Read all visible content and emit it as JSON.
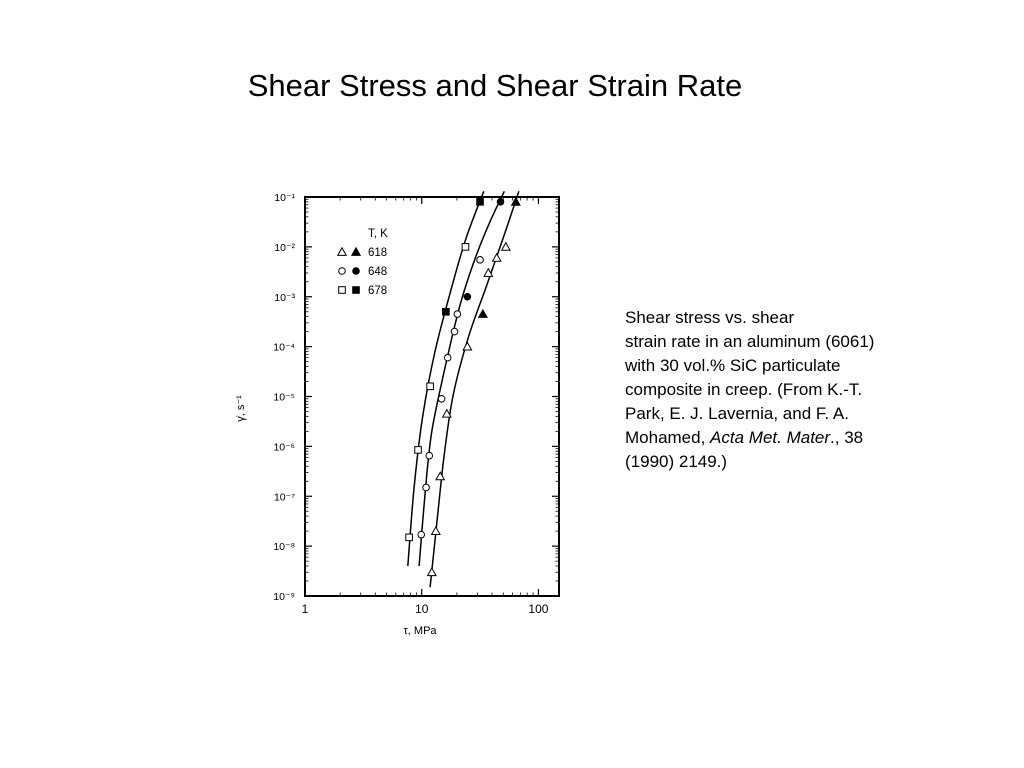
{
  "slide": {
    "title": "Shear Stress and Shear Strain Rate"
  },
  "caption": {
    "lines": [
      "Shear stress vs. shear",
      "strain rate in an aluminum (6061)",
      "with 30 vol.% SiC particulate",
      "composite in creep. (From K.-T.",
      "Park, E. J. Lavernia, and F. A."
    ],
    "line6_before": "Mohamed, ",
    "line6_italic": "Acta Met. Mater",
    "line6_after": "., 38",
    "line7": "(1990) 2149.)"
  },
  "chart_data": {
    "type": "scatter",
    "title": "",
    "xlabel": "τ, MPa",
    "ylabel": "γ̇, s⁻¹",
    "x_scale": "log",
    "y_scale": "log",
    "xlim": [
      1,
      150
    ],
    "ylim": [
      1e-09,
      0.1
    ],
    "x_ticks": [
      "1",
      "10",
      "100"
    ],
    "y_ticks": [
      "10⁻¹",
      "10⁻²",
      "10⁻³",
      "10⁻⁴",
      "10⁻⁵",
      "10⁻⁶",
      "10⁻⁷",
      "10⁻⁸",
      "10⁻⁹"
    ],
    "grid": false,
    "legend": {
      "title": "T, K",
      "placement": "top-left"
    },
    "series": [
      {
        "name": "618",
        "marker": "triangle",
        "color": "#000000",
        "points": [
          {
            "x": 12.2,
            "y": 3e-09,
            "filled": false
          },
          {
            "x": 13.2,
            "y": 2e-08,
            "filled": false
          },
          {
            "x": 14.4,
            "y": 2.5e-07,
            "filled": false
          },
          {
            "x": 16.4,
            "y": 4.5e-06,
            "filled": false
          },
          {
            "x": 24.6,
            "y": 0.0001,
            "filled": false
          },
          {
            "x": 33.4,
            "y": 0.00045,
            "filled": true
          },
          {
            "x": 37.2,
            "y": 0.003,
            "filled": false
          },
          {
            "x": 43.9,
            "y": 0.006,
            "filled": false
          },
          {
            "x": 52.6,
            "y": 0.01,
            "filled": false
          },
          {
            "x": 64.0,
            "y": 0.08,
            "filled": true
          }
        ],
        "curve": [
          {
            "x": 11.8,
            "y": 1.5e-09
          },
          {
            "x": 13.5,
            "y": 3e-08
          },
          {
            "x": 15.5,
            "y": 6e-07
          },
          {
            "x": 18.5,
            "y": 1e-05
          },
          {
            "x": 25.0,
            "y": 0.00015
          },
          {
            "x": 37.0,
            "y": 0.002
          },
          {
            "x": 52.0,
            "y": 0.02
          },
          {
            "x": 68.0,
            "y": 0.13
          }
        ]
      },
      {
        "name": "648",
        "marker": "circle",
        "color": "#000000",
        "points": [
          {
            "x": 9.9,
            "y": 1.7e-08,
            "filled": false
          },
          {
            "x": 10.9,
            "y": 1.5e-07,
            "filled": false
          },
          {
            "x": 11.6,
            "y": 6.5e-07,
            "filled": false
          },
          {
            "x": 14.8,
            "y": 9e-06,
            "filled": false
          },
          {
            "x": 16.7,
            "y": 6e-05,
            "filled": false
          },
          {
            "x": 19.1,
            "y": 0.0002,
            "filled": false
          },
          {
            "x": 20.2,
            "y": 0.00045,
            "filled": false
          },
          {
            "x": 24.6,
            "y": 0.001,
            "filled": true
          },
          {
            "x": 31.6,
            "y": 0.0055,
            "filled": false
          },
          {
            "x": 47.3,
            "y": 0.08,
            "filled": true
          }
        ],
        "curve": [
          {
            "x": 9.5,
            "y": 4e-09
          },
          {
            "x": 10.8,
            "y": 1.5e-07
          },
          {
            "x": 12.2,
            "y": 2e-06
          },
          {
            "x": 15.5,
            "y": 3e-05
          },
          {
            "x": 21.0,
            "y": 0.0006
          },
          {
            "x": 28.0,
            "y": 0.005
          },
          {
            "x": 38.0,
            "y": 0.03
          },
          {
            "x": 51.0,
            "y": 0.13
          }
        ]
      },
      {
        "name": "678",
        "marker": "square",
        "color": "#000000",
        "points": [
          {
            "x": 7.8,
            "y": 1.5e-08,
            "filled": false
          },
          {
            "x": 9.3,
            "y": 8.5e-07,
            "filled": false
          },
          {
            "x": 11.8,
            "y": 1.6e-05,
            "filled": false
          },
          {
            "x": 16.1,
            "y": 0.0005,
            "filled": true
          },
          {
            "x": 23.7,
            "y": 0.01,
            "filled": false
          },
          {
            "x": 31.6,
            "y": 0.08,
            "filled": true
          }
        ],
        "curve": [
          {
            "x": 7.6,
            "y": 4e-09
          },
          {
            "x": 8.6,
            "y": 1.5e-07
          },
          {
            "x": 10.2,
            "y": 4e-06
          },
          {
            "x": 13.0,
            "y": 8e-05
          },
          {
            "x": 18.0,
            "y": 0.0015
          },
          {
            "x": 24.0,
            "y": 0.015
          },
          {
            "x": 34.0,
            "y": 0.13
          }
        ]
      }
    ]
  }
}
